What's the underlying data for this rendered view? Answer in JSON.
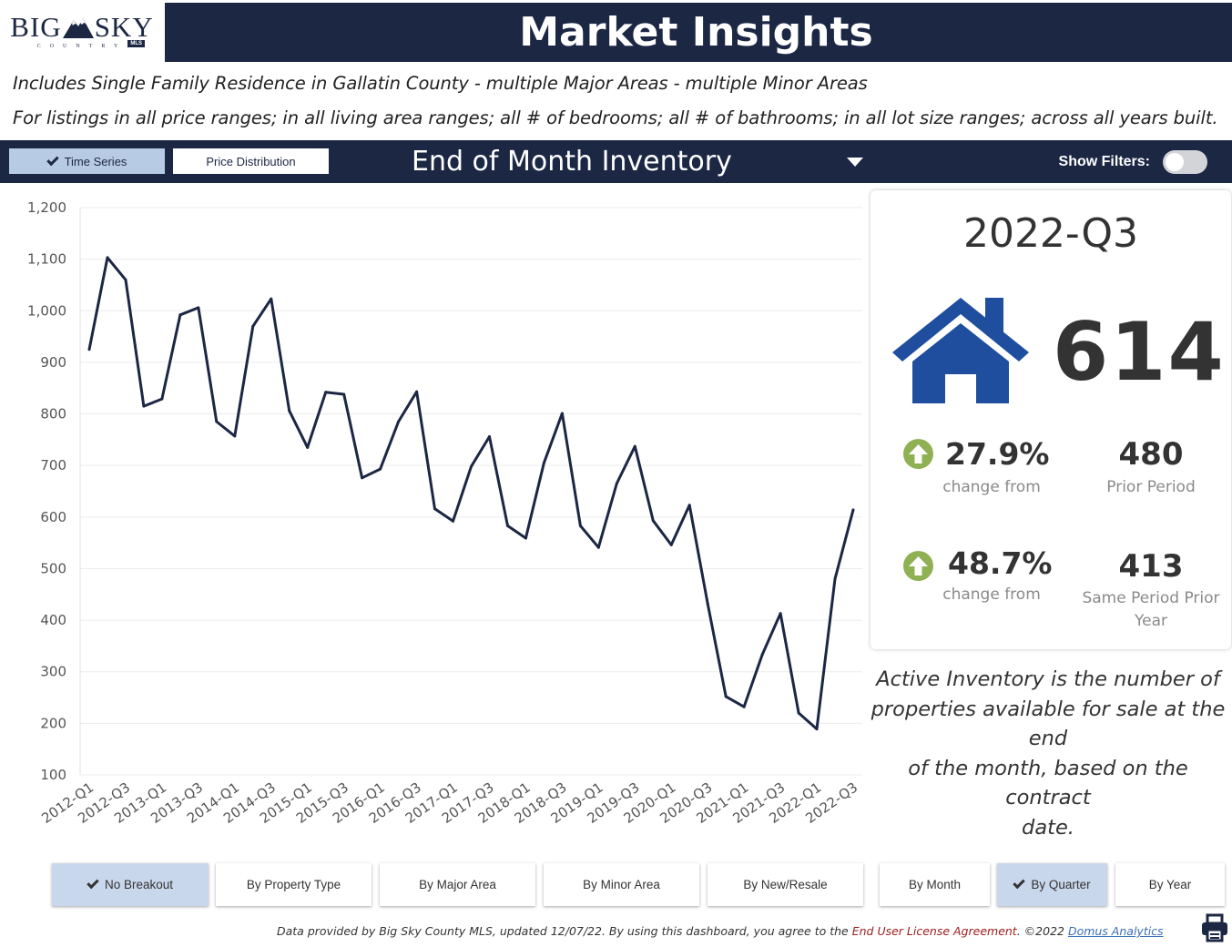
{
  "logo": {
    "main_left": "BIG",
    "main_right": "SKY",
    "sub": "COUNTRY",
    "badge": "MLS"
  },
  "header": {
    "title": "Market Insights"
  },
  "description": {
    "line1": "Includes Single Family Residence in Gallatin County - multiple Major Areas - multiple Minor Areas",
    "line2": "For listings in all price ranges; in all living area ranges; all # of bedrooms; all # of bathrooms; in all lot size ranges; across all years built."
  },
  "toolbar": {
    "time_series_label": "Time Series",
    "price_distribution_label": "Price Distribution",
    "metric_selected": "End of Month Inventory",
    "show_filters_label": "Show Filters:",
    "show_filters_on": false
  },
  "chart_data": {
    "type": "line",
    "title": "",
    "xlabel": "",
    "ylabel": "",
    "ylim": [
      100,
      1200
    ],
    "yticks": [
      100,
      200,
      300,
      400,
      500,
      600,
      700,
      800,
      900,
      1000,
      1100,
      1200
    ],
    "yticks_labels": [
      "100",
      "200",
      "300",
      "400",
      "500",
      "600",
      "700",
      "800",
      "900",
      "1,000",
      "1,100",
      "1,200"
    ],
    "grid": true,
    "categories": [
      "2012-Q1",
      "2012-Q2",
      "2012-Q3",
      "2012-Q4",
      "2013-Q1",
      "2013-Q2",
      "2013-Q3",
      "2013-Q4",
      "2014-Q1",
      "2014-Q2",
      "2014-Q3",
      "2014-Q4",
      "2015-Q1",
      "2015-Q2",
      "2015-Q3",
      "2015-Q4",
      "2016-Q1",
      "2016-Q2",
      "2016-Q3",
      "2016-Q4",
      "2017-Q1",
      "2017-Q2",
      "2017-Q3",
      "2017-Q4",
      "2018-Q1",
      "2018-Q2",
      "2018-Q3",
      "2018-Q4",
      "2019-Q1",
      "2019-Q2",
      "2019-Q3",
      "2019-Q4",
      "2020-Q1",
      "2020-Q2",
      "2020-Q3",
      "2020-Q4",
      "2021-Q1",
      "2021-Q2",
      "2021-Q3",
      "2021-Q4",
      "2022-Q1",
      "2022-Q2",
      "2022-Q3"
    ],
    "tick_labels": [
      "2012-Q1",
      "2012-Q3",
      "2013-Q1",
      "2013-Q3",
      "2014-Q1",
      "2014-Q3",
      "2015-Q1",
      "2015-Q3",
      "2016-Q1",
      "2016-Q3",
      "2017-Q1",
      "2017-Q3",
      "2018-Q1",
      "2018-Q3",
      "2019-Q1",
      "2019-Q3",
      "2020-Q1",
      "2020-Q3",
      "2021-Q1",
      "2021-Q3",
      "2022-Q1",
      "2022-Q3"
    ],
    "series": [
      {
        "color": "#1c2744",
        "values": [
          925,
          1103,
          1060,
          815,
          829,
          992,
          1006,
          785,
          757,
          970,
          1023,
          806,
          735,
          842,
          838,
          676,
          693,
          785,
          843,
          616,
          592,
          698,
          756,
          583,
          559,
          705,
          801,
          583,
          541,
          665,
          737,
          593,
          546,
          623,
          432,
          252,
          232,
          333,
          413,
          220,
          189,
          480,
          614
        ]
      }
    ]
  },
  "kpi": {
    "period": "2022-Q3",
    "icon": "house-icon",
    "value": "614",
    "change1_pct": "27.9%",
    "change1_label": "change from",
    "prior_value": "480",
    "prior_label": "Prior Period",
    "change2_pct": "48.7%",
    "change2_label": "change from",
    "prior_year_value": "413",
    "prior_year_label_1": "Same Period Prior",
    "prior_year_label_2": "Year",
    "arrow_color": "#8fb153",
    "house_color": "#1f4e9e"
  },
  "note": {
    "line1": "Active Inventory is the number of",
    "line2": "properties available for sale at the end",
    "line3": "of the month, based on the contract",
    "line4": "date."
  },
  "breakouts": {
    "no_breakout": "No Breakout",
    "by_property_type": "By Property Type",
    "by_major_area": "By Major Area",
    "by_minor_area": "By Minor Area",
    "by_new_resale": "By New/Resale",
    "by_month": "By Month",
    "by_quarter": "By Quarter",
    "by_year": "By Year"
  },
  "footer": {
    "text1": "Data provided by Big Sky County MLS, updated 12/07/22.  By using this dashboard, you agree to the ",
    "eula": "End User License Agreement",
    "text2": ".  ©2022 ",
    "domus": "Domus Analytics"
  },
  "colors": {
    "navy": "#1c2744",
    "active_button": "#c9d7ec",
    "toggle_off": "#d2d4d8"
  }
}
